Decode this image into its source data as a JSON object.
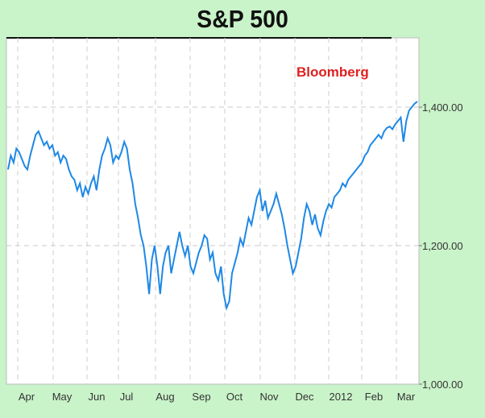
{
  "title": "S&P 500",
  "source_label": "Bloomberg",
  "colors": {
    "background": "#c9f3c9",
    "plot": "#ffffff",
    "line": "#1e88e5",
    "source": "#e02020",
    "grid": "#c8c8c8"
  },
  "chart_data": {
    "type": "line",
    "title": "S&P 500",
    "xlabel": "",
    "ylabel": "",
    "x_ticks": [
      "Apr",
      "May",
      "Jun",
      "Jul",
      "Aug",
      "Sep",
      "Oct",
      "Nov",
      "Dec",
      "2012",
      "Feb",
      "Mar"
    ],
    "y_ticks": [
      "1,000.00",
      "1,200.00",
      "1,400.00"
    ],
    "ylim": [
      1000,
      1500
    ],
    "grid": true,
    "series": [
      {
        "name": "",
        "values": [
          1310,
          1330,
          1320,
          1340,
          1335,
          1325,
          1315,
          1310,
          1330,
          1345,
          1360,
          1365,
          1355,
          1345,
          1350,
          1340,
          1345,
          1330,
          1335,
          1320,
          1330,
          1325,
          1310,
          1300,
          1295,
          1280,
          1290,
          1270,
          1285,
          1275,
          1290,
          1300,
          1280,
          1310,
          1330,
          1340,
          1355,
          1345,
          1320,
          1330,
          1325,
          1335,
          1350,
          1340,
          1310,
          1290,
          1260,
          1240,
          1215,
          1200,
          1170,
          1130,
          1180,
          1200,
          1170,
          1130,
          1170,
          1190,
          1200,
          1160,
          1180,
          1200,
          1220,
          1200,
          1185,
          1200,
          1170,
          1160,
          1175,
          1190,
          1200,
          1215,
          1210,
          1180,
          1190,
          1160,
          1150,
          1170,
          1130,
          1110,
          1120,
          1160,
          1175,
          1190,
          1210,
          1200,
          1220,
          1240,
          1230,
          1250,
          1270,
          1280,
          1250,
          1265,
          1240,
          1250,
          1260,
          1275,
          1260,
          1245,
          1225,
          1200,
          1180,
          1160,
          1170,
          1190,
          1210,
          1240,
          1260,
          1250,
          1230,
          1245,
          1225,
          1215,
          1235,
          1250,
          1260,
          1255,
          1270,
          1275,
          1280,
          1290,
          1285,
          1295,
          1300,
          1305,
          1310,
          1315,
          1320,
          1330,
          1335,
          1345,
          1350,
          1355,
          1360,
          1355,
          1365,
          1370,
          1372,
          1368,
          1375,
          1380,
          1385,
          1350,
          1380,
          1395,
          1400,
          1405,
          1408
        ]
      }
    ]
  }
}
